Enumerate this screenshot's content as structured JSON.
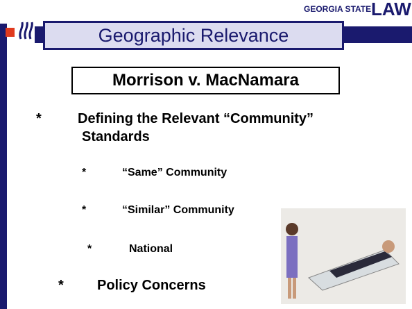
{
  "header": {
    "logo_text": "GEORGIA STATE",
    "logo_law": "LAW"
  },
  "title": "Geographic Relevance",
  "subtitle": "Morrison v. MacNamara",
  "bullets": [
    {
      "marker": "*",
      "lines": [
        "Defining the Relevant “Community”",
        "Standards"
      ]
    },
    {
      "marker": "*",
      "lines": [
        "“Same” Community"
      ]
    },
    {
      "marker": "*",
      "lines": [
        "“Similar” Community"
      ]
    },
    {
      "marker": "*",
      "lines": [
        "National"
      ]
    },
    {
      "marker": "*",
      "lines": [
        "Policy Concerns"
      ]
    }
  ]
}
